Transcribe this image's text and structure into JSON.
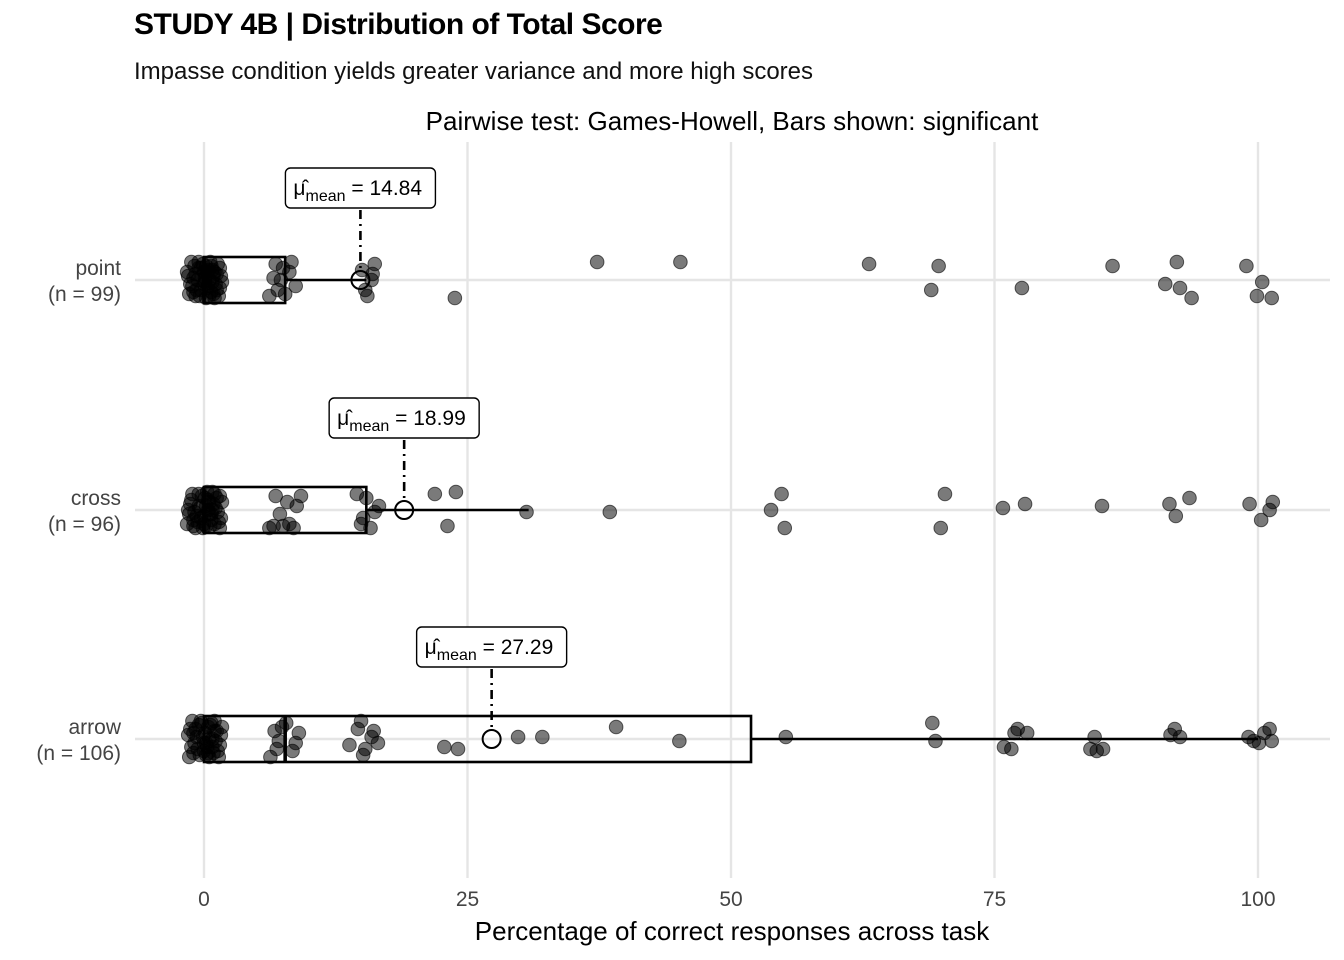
{
  "title": "STUDY 4B | Distribution of Total Score",
  "subtitle": "Impasse condition yields greater variance and more high scores",
  "chart_data": {
    "type": "boxplot",
    "orientation": "horizontal",
    "caption_top": "Pairwise test: Games-Howell, Bars shown: significant",
    "xlabel": "Percentage of correct responses across task",
    "ylabel": "",
    "xlim": [
      -7,
      107
    ],
    "xticks": [
      0,
      25,
      50,
      75,
      100
    ],
    "grid": true,
    "mean_label_prefix": "μ̂",
    "mean_label_subscript": "mean",
    "groups": [
      {
        "name": "point",
        "n_label": "(n = 99)",
        "box": {
          "q1": 0,
          "median": 0,
          "q3": 7.7,
          "whisker_low": 0,
          "whisker_high": 15.4
        },
        "mean": 14.84,
        "mean_label": "= 14.84",
        "points": [
          [
            -1.5,
            0.4
          ],
          [
            -1,
            0.8
          ],
          [
            -0.5,
            0.2
          ],
          [
            0,
            0.6
          ],
          [
            0.5,
            0.9
          ],
          [
            1,
            0.3
          ],
          [
            -1.2,
            0.05
          ],
          [
            -0.3,
            0.75
          ],
          [
            0.8,
            0.55
          ],
          [
            1.3,
            0.1
          ],
          [
            -0.8,
            0.35
          ],
          [
            0.2,
            0.95
          ],
          [
            0.7,
            0.15
          ],
          [
            1.5,
            0.7
          ],
          [
            -1.4,
            0.85
          ],
          [
            0.1,
            0.45
          ],
          [
            1.1,
            0.6
          ],
          [
            -0.6,
            0.5
          ],
          [
            0.4,
            0.25
          ],
          [
            -0.1,
            0.1
          ],
          [
            0.9,
            0.85
          ],
          [
            -1.1,
            0.65
          ],
          [
            1.6,
            0.4
          ],
          [
            0.3,
            0.7
          ],
          [
            -0.4,
            0.9
          ],
          [
            0.6,
            0.05
          ],
          [
            1.2,
            0.35
          ],
          [
            -0.9,
            0.15
          ],
          [
            0,
            0.3
          ],
          [
            0.5,
            0.5
          ],
          [
            -1.3,
            0.6
          ],
          [
            1.4,
            0.9
          ],
          [
            -0.2,
            0.4
          ],
          [
            0.8,
            0.25
          ],
          [
            1.7,
            0.55
          ],
          [
            -0.7,
            0.75
          ],
          [
            0.2,
            0.15
          ],
          [
            1,
            0.95
          ],
          [
            -1,
            0.45
          ],
          [
            0.4,
            0.65
          ],
          [
            1.5,
            0.2
          ],
          [
            -0.5,
            0.05
          ],
          [
            0.7,
            0.8
          ],
          [
            -1.6,
            0.3
          ],
          [
            0.1,
            0.55
          ],
          [
            1.2,
            0.75
          ],
          [
            -0.3,
            0.2
          ],
          [
            0.9,
            0.4
          ],
          [
            -0.8,
            0.9
          ],
          [
            0.3,
            0.3
          ],
          [
            6.2,
            0.9
          ],
          [
            6.8,
            0.1
          ],
          [
            7.3,
            0.5
          ],
          [
            7.7,
            0.85
          ],
          [
            8.1,
            0.3
          ],
          [
            8.7,
            0.65
          ],
          [
            7.5,
            0.2
          ],
          [
            6.6,
            0.45
          ],
          [
            8.3,
            0.05
          ],
          [
            7,
            0.75
          ],
          [
            15,
            0.25
          ],
          [
            15.5,
            0.9
          ],
          [
            15.9,
            0.5
          ],
          [
            16.2,
            0.1
          ],
          [
            15.3,
            0.75
          ],
          [
            16,
            0.35
          ],
          [
            23.8,
            0.95
          ],
          [
            37.3,
            0.05
          ],
          [
            45.2,
            0.05
          ],
          [
            63.1,
            0.1
          ],
          [
            69,
            0.75
          ],
          [
            69.7,
            0.15
          ],
          [
            77.6,
            0.7
          ],
          [
            86.2,
            0.15
          ],
          [
            91.2,
            0.6
          ],
          [
            92.3,
            0.05
          ],
          [
            92.6,
            0.7
          ],
          [
            93.7,
            0.95
          ],
          [
            98.9,
            0.15
          ],
          [
            99.9,
            0.9
          ],
          [
            100.4,
            0.55
          ],
          [
            101.3,
            0.95
          ]
        ]
      },
      {
        "name": "cross",
        "n_label": "(n = 96)",
        "box": {
          "q1": 0,
          "median": 0,
          "q3": 15.4,
          "whisker_low": 0,
          "whisker_high": 30.8
        },
        "mean": 18.99,
        "mean_label": "= 18.99",
        "points": [
          [
            -1.5,
            0.5
          ],
          [
            -1,
            0.9
          ],
          [
            -0.5,
            0.1
          ],
          [
            0,
            0.65
          ],
          [
            0.5,
            0.3
          ],
          [
            1,
            0.85
          ],
          [
            -1.2,
            0.25
          ],
          [
            -0.3,
            0.7
          ],
          [
            0.8,
            0.05
          ],
          [
            1.3,
            0.55
          ],
          [
            -0.8,
            0.95
          ],
          [
            0.2,
            0.4
          ],
          [
            0.7,
            0.75
          ],
          [
            1.5,
            0.15
          ],
          [
            -1.4,
            0.6
          ],
          [
            0.1,
            0.2
          ],
          [
            1.1,
            0.45
          ],
          [
            -0.6,
            0.8
          ],
          [
            0.4,
            0.5
          ],
          [
            -0.1,
            0.95
          ],
          [
            0.9,
            0.35
          ],
          [
            -1.1,
            0.1
          ],
          [
            1.6,
            0.7
          ],
          [
            0.3,
            0.05
          ],
          [
            -0.4,
            0.45
          ],
          [
            0.6,
            0.9
          ],
          [
            1.2,
            0.2
          ],
          [
            -0.9,
            0.55
          ],
          [
            0,
            0.85
          ],
          [
            0.5,
            0.6
          ],
          [
            -1.3,
            0.35
          ],
          [
            1.4,
            0.8
          ],
          [
            -0.2,
            0.15
          ],
          [
            0.8,
            0.5
          ],
          [
            1.7,
            0.3
          ],
          [
            -0.7,
            0.65
          ],
          [
            0.2,
            0.9
          ],
          [
            1,
            0.1
          ],
          [
            -1,
            0.75
          ],
          [
            0.4,
            0.25
          ],
          [
            1.5,
            0.95
          ],
          [
            -0.5,
            0.4
          ],
          [
            0.7,
            0.6
          ],
          [
            -1.6,
            0.85
          ],
          [
            6.2,
            0.95
          ],
          [
            6.8,
            0.15
          ],
          [
            7.5,
            0.9
          ],
          [
            7.9,
            0.3
          ],
          [
            8.5,
            0.95
          ],
          [
            9.2,
            0.15
          ],
          [
            8.1,
            0.85
          ],
          [
            7.2,
            0.6
          ],
          [
            8.8,
            0.4
          ],
          [
            6.6,
            0.9
          ],
          [
            14.5,
            0.1
          ],
          [
            15.1,
            0.7
          ],
          [
            15.8,
            0.95
          ],
          [
            16.6,
            0.4
          ],
          [
            15.4,
            0.2
          ],
          [
            14.9,
            0.85
          ],
          [
            16.2,
            0.55
          ],
          [
            21.9,
            0.1
          ],
          [
            23.1,
            0.9
          ],
          [
            23.9,
            0.05
          ],
          [
            30.6,
            0.55
          ],
          [
            38.5,
            0.55
          ],
          [
            53.8,
            0.5
          ],
          [
            54.8,
            0.1
          ],
          [
            55.1,
            0.95
          ],
          [
            69.9,
            0.95
          ],
          [
            70.3,
            0.1
          ],
          [
            75.8,
            0.45
          ],
          [
            77.9,
            0.35
          ],
          [
            85.2,
            0.4
          ],
          [
            91.6,
            0.35
          ],
          [
            92.2,
            0.65
          ],
          [
            93.5,
            0.2
          ],
          [
            99.2,
            0.35
          ],
          [
            100.3,
            0.75
          ],
          [
            101.1,
            0.5
          ],
          [
            101.4,
            0.3
          ]
        ]
      },
      {
        "name": "arrow",
        "n_label": "(n = 106)",
        "box": {
          "q1": 0,
          "median": 7.7,
          "q3": 51.9,
          "whisker_low": 0,
          "whisker_high": 100
        },
        "mean": 27.29,
        "mean_label": "= 27.29",
        "points": [
          [
            -1.5,
            0.4
          ],
          [
            -1,
            0.85
          ],
          [
            -0.5,
            0.15
          ],
          [
            0,
            0.6
          ],
          [
            0.5,
            0.95
          ],
          [
            1,
            0.3
          ],
          [
            -1.2,
            0.7
          ],
          [
            -0.3,
            0.05
          ],
          [
            0.8,
            0.5
          ],
          [
            1.3,
            0.8
          ],
          [
            -0.8,
            0.25
          ],
          [
            0.2,
            0.9
          ],
          [
            0.7,
            0.1
          ],
          [
            1.5,
            0.65
          ],
          [
            -1.4,
            0.95
          ],
          [
            0.1,
            0.35
          ],
          [
            1.1,
            0.55
          ],
          [
            -0.6,
            0.75
          ],
          [
            0.4,
            0.2
          ],
          [
            -0.1,
            0.45
          ],
          [
            0.9,
            0.85
          ],
          [
            -1.1,
            0.05
          ],
          [
            1.6,
            0.4
          ],
          [
            0.3,
            0.7
          ],
          [
            -0.4,
            0.9
          ],
          [
            0.6,
            0.15
          ],
          [
            1.2,
            0.3
          ],
          [
            -0.9,
            0.6
          ],
          [
            0,
            0.8
          ],
          [
            0.5,
            0.5
          ],
          [
            -1.3,
            0.25
          ],
          [
            1.4,
            0.95
          ],
          [
            -0.2,
            0.1
          ],
          [
            0.8,
            0.7
          ],
          [
            1.7,
            0.2
          ],
          [
            -0.7,
            0.45
          ],
          [
            0.2,
            0.6
          ],
          [
            1,
            0.05
          ],
          [
            -1,
            0.35
          ],
          [
            0.4,
            0.85
          ],
          [
            6.3,
            0.95
          ],
          [
            6.7,
            0.3
          ],
          [
            7.1,
            0.55
          ],
          [
            7.8,
            0.1
          ],
          [
            8.4,
            0.8
          ],
          [
            9,
            0.35
          ],
          [
            6.9,
            0.75
          ],
          [
            8.7,
            0.6
          ],
          [
            7.4,
            0.2
          ],
          [
            13.8,
            0.65
          ],
          [
            14.6,
            0.25
          ],
          [
            15.3,
            0.75
          ],
          [
            15.9,
            0.45
          ],
          [
            16.5,
            0.6
          ],
          [
            14.9,
            0.05
          ],
          [
            16.1,
            0.3
          ],
          [
            15.1,
            0.9
          ],
          [
            22.8,
            0.7
          ],
          [
            24.1,
            0.75
          ],
          [
            29.8,
            0.45
          ],
          [
            32.1,
            0.45
          ],
          [
            39.1,
            0.2
          ],
          [
            45.1,
            0.55
          ],
          [
            55.2,
            0.45
          ],
          [
            69.1,
            0.1
          ],
          [
            69.4,
            0.55
          ],
          [
            75.9,
            0.7
          ],
          [
            76.6,
            0.75
          ],
          [
            76.9,
            0.35
          ],
          [
            77.2,
            0.25
          ],
          [
            78.1,
            0.35
          ],
          [
            84.1,
            0.75
          ],
          [
            84.7,
            0.8
          ],
          [
            85.3,
            0.75
          ],
          [
            84.5,
            0.45
          ],
          [
            91.7,
            0.4
          ],
          [
            92.1,
            0.25
          ],
          [
            92.6,
            0.45
          ],
          [
            99.1,
            0.45
          ],
          [
            99.6,
            0.55
          ],
          [
            100.1,
            0.6
          ],
          [
            100.6,
            0.35
          ],
          [
            101.1,
            0.25
          ],
          [
            101.3,
            0.55
          ]
        ]
      }
    ]
  }
}
